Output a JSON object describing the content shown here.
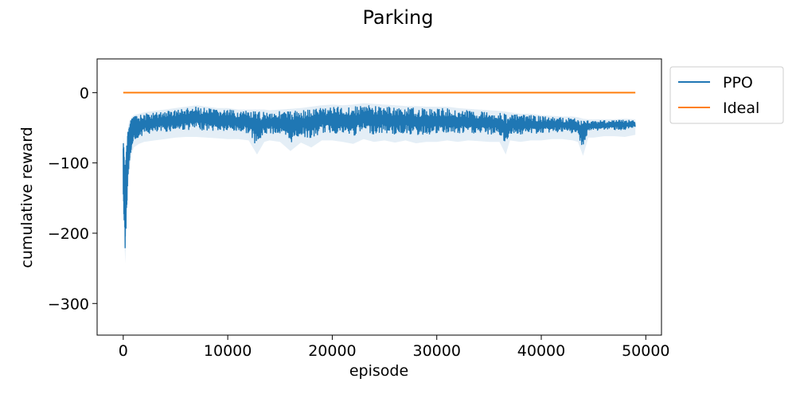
{
  "chart_data": {
    "type": "line",
    "title": "Parking",
    "xlabel": "episode",
    "ylabel": "cumulative reward",
    "xlim": [
      -2500,
      51500
    ],
    "ylim": [
      -345,
      48
    ],
    "x_ticks": [
      0,
      10000,
      20000,
      30000,
      40000,
      50000
    ],
    "x_tick_labels": [
      "0",
      "10000",
      "20000",
      "30000",
      "40000",
      "50000"
    ],
    "y_ticks": [
      0,
      -100,
      -200,
      -300
    ],
    "y_tick_labels": [
      "0",
      "−100",
      "−200",
      "−300"
    ],
    "grid": false,
    "legend_position": "outside-right",
    "series": [
      {
        "name": "PPO",
        "color": "#1f77b4",
        "band_alpha": 0.12,
        "x": [
          0,
          100,
          200,
          300,
          400,
          500,
          600,
          800,
          1000,
          1500,
          2000,
          3000,
          4000,
          5000,
          6000,
          7000,
          8000,
          9000,
          10000,
          11000,
          12000,
          12800,
          13500,
          14000,
          15000,
          16000,
          17000,
          18000,
          19000,
          20000,
          21000,
          22000,
          23000,
          24000,
          25000,
          26000,
          27000,
          28000,
          29000,
          30000,
          31000,
          32000,
          33000,
          34000,
          35000,
          36000,
          36600,
          37000,
          38000,
          39000,
          40000,
          41000,
          42000,
          43000,
          43500,
          44000,
          44500,
          45000,
          46000,
          47000,
          48000,
          49000
        ],
        "upper": [
          -60,
          -80,
          -95,
          -75,
          -55,
          -45,
          -40,
          -35,
          -32,
          -30,
          -28,
          -26,
          -24,
          -22,
          -20,
          -18,
          -20,
          -22,
          -22,
          -24,
          -24,
          -24,
          -24,
          -25,
          -24,
          -23,
          -22,
          -20,
          -18,
          -17,
          -18,
          -17,
          -15,
          -16,
          -17,
          -18,
          -19,
          -19,
          -20,
          -20,
          -20,
          -22,
          -23,
          -24,
          -25,
          -26,
          -27,
          -28,
          -30,
          -30,
          -32,
          -33,
          -34,
          -34,
          -35,
          -37,
          -38,
          -38,
          -38,
          -38,
          -37,
          -38
        ],
        "lower": [
          -160,
          -200,
          -235,
          -180,
          -150,
          -120,
          -100,
          -80,
          -70,
          -65,
          -62,
          -60,
          -58,
          -56,
          -55,
          -55,
          -56,
          -57,
          -58,
          -58,
          -60,
          -80,
          -62,
          -60,
          -62,
          -75,
          -63,
          -70,
          -60,
          -60,
          -62,
          -65,
          -58,
          -62,
          -60,
          -63,
          -60,
          -64,
          -62,
          -62,
          -60,
          -62,
          -60,
          -61,
          -62,
          -62,
          -80,
          -60,
          -62,
          -60,
          -60,
          -58,
          -58,
          -60,
          -62,
          -82,
          -56,
          -56,
          -54,
          -54,
          -55,
          -52
        ]
      },
      {
        "name": "Ideal",
        "color": "#ff7f0e",
        "x": [
          0,
          49000
        ],
        "y": [
          0,
          0
        ]
      }
    ]
  }
}
